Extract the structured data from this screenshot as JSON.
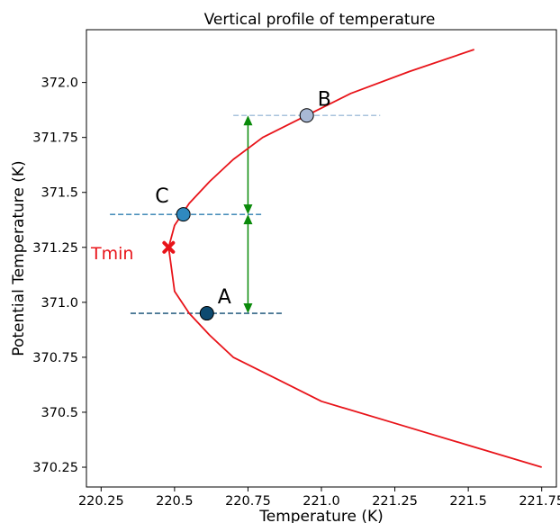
{
  "chart_data": {
    "type": "line",
    "title": "Vertical profile of temperature",
    "xlabel": "Temperature (K)",
    "ylabel": "Potential Temperature (K)",
    "xlim": [
      220.2,
      221.8
    ],
    "ylim": [
      370.16,
      372.24
    ],
    "x_ticks": [
      220.25,
      220.5,
      220.75,
      221.0,
      221.25,
      221.5,
      221.75
    ],
    "x_tick_labels": [
      "220.25",
      "220.5",
      "220.75",
      "221.0",
      "221.25",
      "221.5",
      "221.75"
    ],
    "y_ticks": [
      370.25,
      370.5,
      370.75,
      371.0,
      371.25,
      371.5,
      371.75,
      372.0
    ],
    "y_tick_labels": [
      "370.25",
      "370.5",
      "370.75",
      "371.0",
      "371.25",
      "371.5",
      "371.75",
      "372.0"
    ],
    "grid": false,
    "series": [
      {
        "color": "#e8141a",
        "x": [
          221.75,
          221.5,
          221.25,
          221.0,
          220.85,
          220.7,
          220.62,
          220.55,
          220.5,
          220.48,
          220.5,
          220.55,
          220.62,
          220.7,
          220.8,
          220.95,
          221.1,
          221.3,
          221.52
        ],
        "y": [
          370.25,
          370.35,
          370.45,
          370.55,
          370.65,
          370.75,
          370.85,
          370.95,
          371.05,
          371.25,
          371.35,
          371.45,
          371.55,
          371.65,
          371.75,
          371.85,
          371.95,
          372.05,
          372.15
        ]
      }
    ],
    "points": [
      {
        "label": "A",
        "x": 220.61,
        "y": 370.95,
        "color": "#0d4a70",
        "hline": [
          220.35,
          220.87
        ],
        "hline_color": "#0d4a70"
      },
      {
        "label": "B",
        "x": 220.95,
        "y": 371.85,
        "color": "#a9b9d6",
        "hline": [
          220.7,
          221.2
        ],
        "hline_color": "#a9c3dd"
      },
      {
        "label": "C",
        "x": 220.53,
        "y": 371.4,
        "color": "#2f89bf",
        "hline": [
          220.28,
          220.8
        ],
        "hline_color": "#2f7fb0"
      }
    ],
    "tmin": {
      "label": "Tmin",
      "x": 220.48,
      "y": 371.25,
      "color": "#e8141a"
    },
    "arrows": {
      "color": "#0a8a0a",
      "x": 220.75,
      "segments": [
        [
          371.4,
          371.85
        ],
        [
          370.95,
          371.4
        ]
      ]
    }
  }
}
